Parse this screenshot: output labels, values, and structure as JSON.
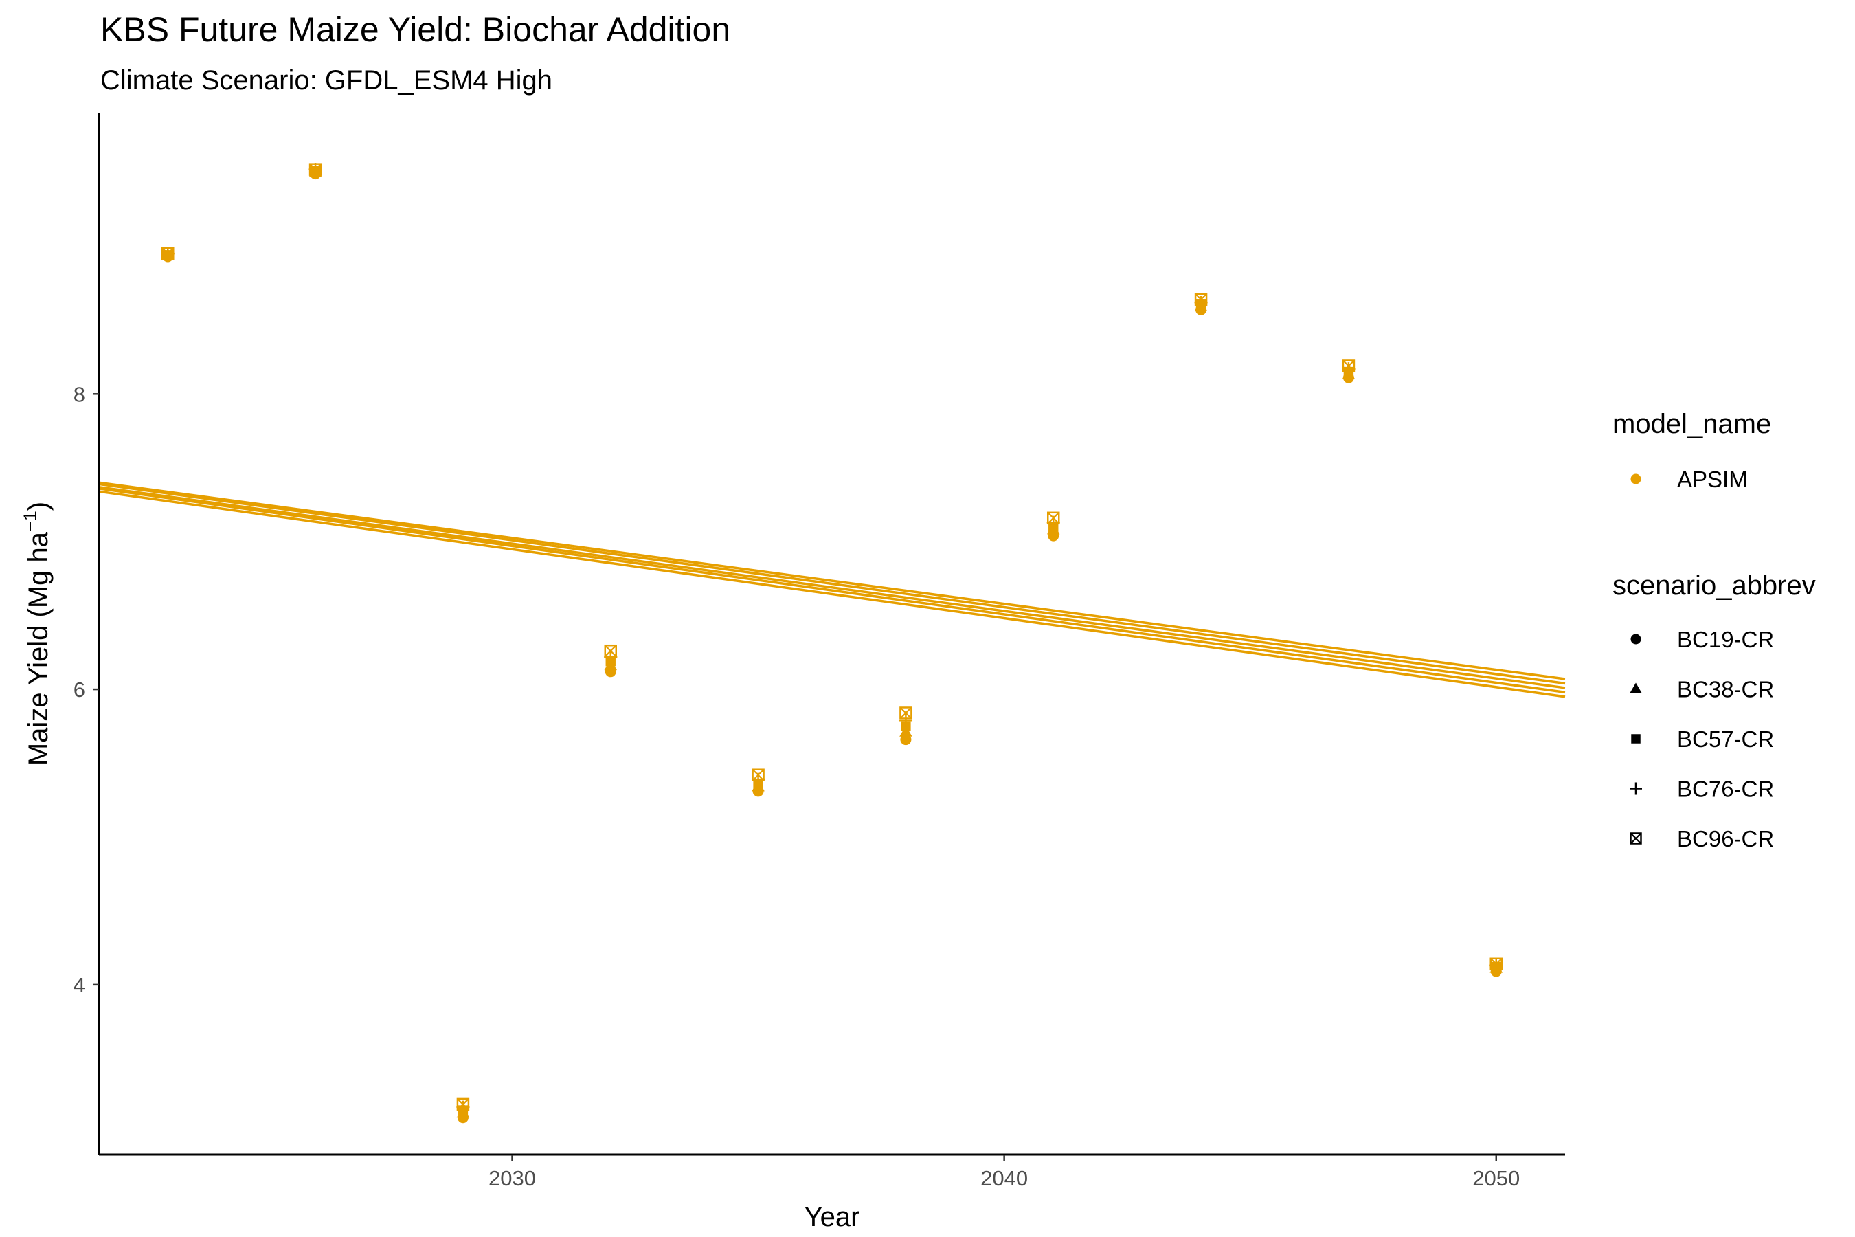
{
  "chart_data": {
    "type": "scatter",
    "title": "KBS Future Maize Yield: Biochar Addition",
    "subtitle": "Climate Scenario: GFDL_ESM4 High",
    "xlabel": "Year",
    "ylabel": "Maize Yield (Mg ha",
    "ylabel_superscript": "−1",
    "ylabel_close": ")",
    "xlim": [
      2021.6,
      2051.4
    ],
    "ylim": [
      2.85,
      9.9
    ],
    "x_ticks": [
      2030,
      2040,
      2050
    ],
    "y_ticks": [
      4,
      6,
      8
    ],
    "grid": false,
    "color": "#E69F00",
    "legend_placement": "right",
    "legends": [
      {
        "title": "model_name",
        "items": [
          {
            "label": "APSIM",
            "shape": "circle"
          }
        ]
      },
      {
        "title": "scenario_abbrev",
        "items": [
          {
            "label": "BC19-CR",
            "shape": "circle"
          },
          {
            "label": "BC38-CR",
            "shape": "triangle"
          },
          {
            "label": "BC57-CR",
            "shape": "square"
          },
          {
            "label": "BC76-CR",
            "shape": "plus"
          },
          {
            "label": "BC96-CR",
            "shape": "boxx"
          }
        ]
      }
    ],
    "x": [
      2023,
      2026,
      2029,
      2032,
      2035,
      2038,
      2041,
      2044,
      2047,
      2050
    ],
    "series": [
      {
        "name": "BC19-CR",
        "shape": "circle",
        "values": [
          8.93,
          9.49,
          3.1,
          6.12,
          5.31,
          5.66,
          7.04,
          8.57,
          8.11,
          4.09
        ]
      },
      {
        "name": "BC38-CR",
        "shape": "triangle",
        "values": [
          8.94,
          9.5,
          3.13,
          6.16,
          5.34,
          5.71,
          7.08,
          8.59,
          8.13,
          4.11
        ]
      },
      {
        "name": "BC57-CR",
        "shape": "square",
        "values": [
          8.94,
          9.51,
          3.15,
          6.19,
          5.36,
          5.75,
          7.1,
          8.61,
          8.15,
          4.12
        ]
      },
      {
        "name": "BC76-CR",
        "shape": "plus",
        "values": [
          8.95,
          9.52,
          3.17,
          6.22,
          5.39,
          5.79,
          7.13,
          8.62,
          8.17,
          4.13
        ]
      },
      {
        "name": "BC96-CR",
        "shape": "boxx",
        "values": [
          8.95,
          9.52,
          3.19,
          6.26,
          5.42,
          5.84,
          7.16,
          8.64,
          8.19,
          4.14
        ]
      }
    ],
    "trend_lines": [
      {
        "name": "BC19-CR",
        "x": [
          2021.6,
          2051.4
        ],
        "y": [
          7.34,
          5.95
        ]
      },
      {
        "name": "BC38-CR",
        "x": [
          2021.6,
          2051.4
        ],
        "y": [
          7.36,
          5.98
        ]
      },
      {
        "name": "BC57-CR",
        "x": [
          2021.6,
          2051.4
        ],
        "y": [
          7.37,
          6.01
        ]
      },
      {
        "name": "BC76-CR",
        "x": [
          2021.6,
          2051.4
        ],
        "y": [
          7.39,
          6.04
        ]
      },
      {
        "name": "BC96-CR",
        "x": [
          2021.6,
          2051.4
        ],
        "y": [
          7.4,
          6.07
        ]
      }
    ]
  }
}
